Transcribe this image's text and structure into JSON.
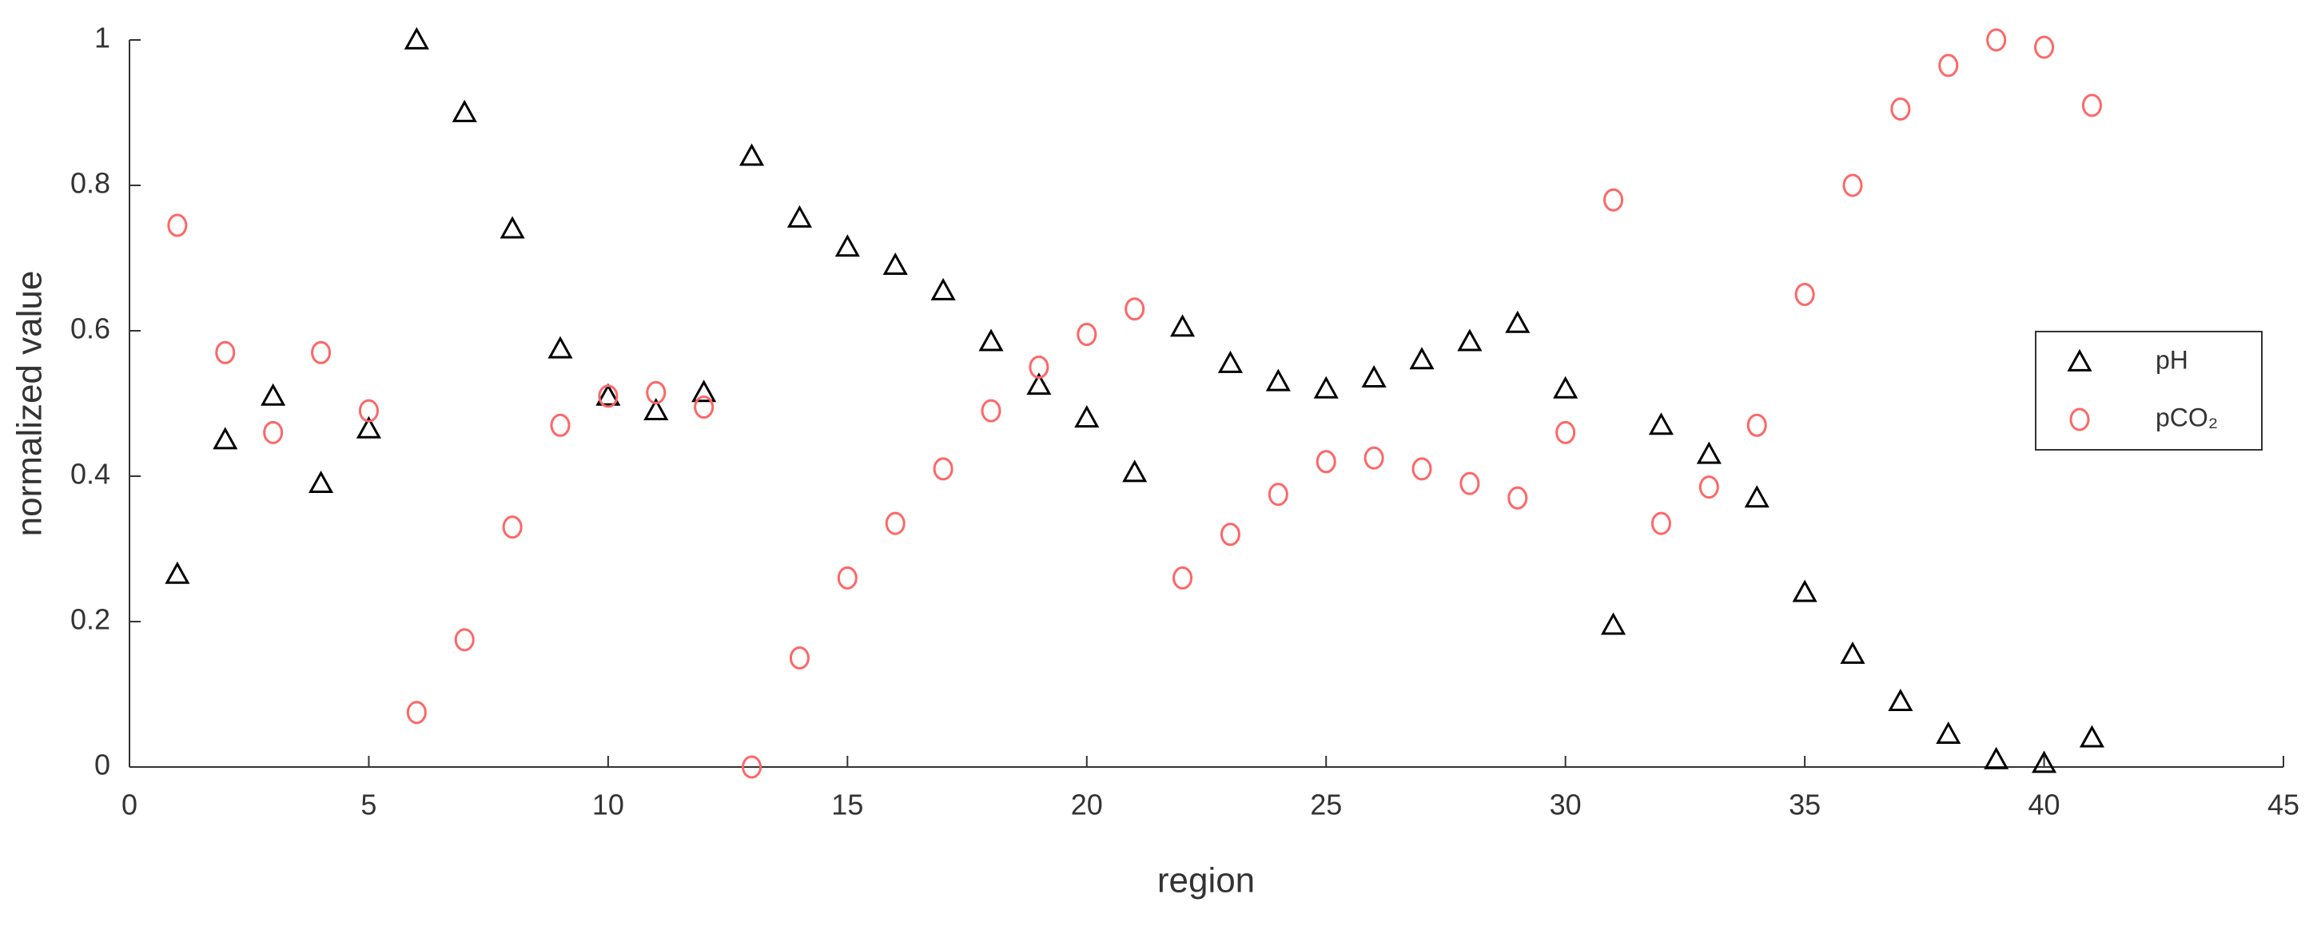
{
  "chart_data": {
    "type": "scatter",
    "x_label": "region",
    "y_label": "normalized value",
    "x": [
      1,
      2,
      3,
      4,
      5,
      6,
      7,
      8,
      9,
      10,
      11,
      12,
      13,
      14,
      15,
      16,
      17,
      18,
      19,
      20,
      21,
      22,
      23,
      24,
      25,
      26,
      27,
      28,
      29,
      30,
      31,
      32,
      33,
      34,
      35,
      36,
      37,
      38,
      39,
      40,
      41
    ],
    "series": [
      {
        "name": "pH",
        "color": "#000000",
        "marker": "triangle",
        "values": [
          0.265,
          0.45,
          0.51,
          0.39,
          0.465,
          1.0,
          0.9,
          0.74,
          0.575,
          0.51,
          0.49,
          0.515,
          0.84,
          0.755,
          0.715,
          0.69,
          0.655,
          0.585,
          0.525,
          0.48,
          0.405,
          0.605,
          0.555,
          0.53,
          0.52,
          0.535,
          0.56,
          0.585,
          0.61,
          0.52,
          0.195,
          0.47,
          0.43,
          0.37,
          0.24,
          0.155,
          0.09,
          0.045,
          0.01,
          0.005,
          0.04
        ]
      },
      {
        "name": "pCO₂",
        "color": "#ff6666",
        "marker": "circle",
        "values": [
          0.745,
          0.57,
          0.46,
          0.57,
          0.49,
          0.075,
          0.175,
          0.33,
          0.47,
          0.51,
          0.515,
          0.495,
          0,
          0.15,
          0.26,
          0.335,
          0.41,
          0.49,
          0.55,
          0.595,
          0.63,
          0.26,
          0.32,
          0.375,
          0.42,
          0.425,
          0.41,
          0.39,
          0.37,
          0.46,
          0.78,
          0.335,
          0.385,
          0.47,
          0.65,
          0.8,
          0.905,
          0.965,
          1.0,
          0.99,
          0.91
        ]
      }
    ],
    "xlim": [
      0,
      45
    ],
    "xticks": [
      0,
      5,
      10,
      15,
      20,
      25,
      30,
      35,
      40,
      45
    ],
    "ylim": [
      0,
      1
    ],
    "yticks": [
      0,
      0.2,
      0.4,
      0.6,
      0.8,
      1
    ],
    "legend": "right"
  }
}
